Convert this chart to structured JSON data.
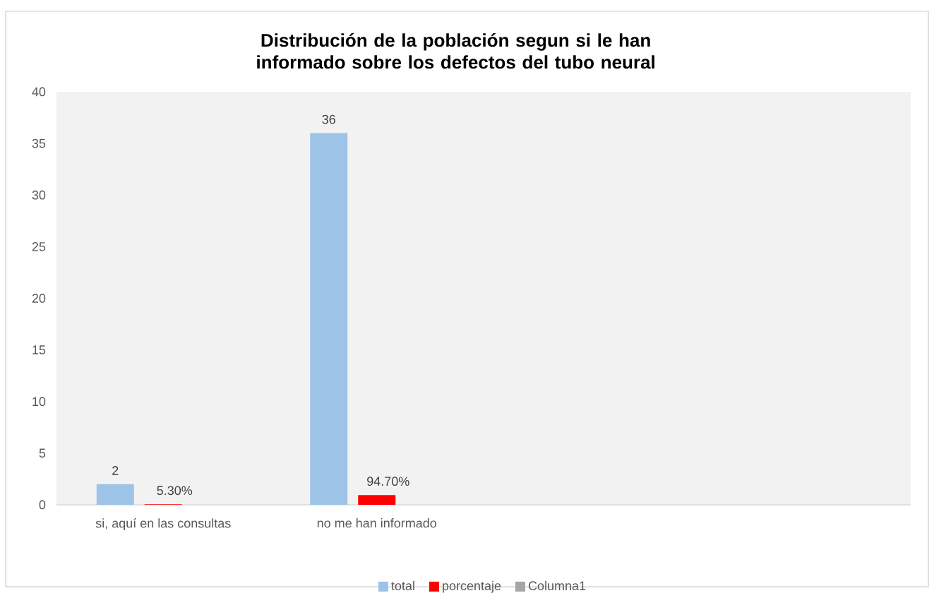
{
  "chart_data": {
    "type": "bar",
    "title": "Distribución de la población segun si le han informado sobre los defectos del tubo neural",
    "categories": [
      "si,  aquí en las consultas",
      "no me han informado",
      null,
      null
    ],
    "series": [
      {
        "name": "total",
        "color": "#9dc3e6",
        "values": [
          2,
          36,
          null,
          null
        ],
        "value_labels": [
          "2",
          "36",
          null,
          null
        ]
      },
      {
        "name": "porcentaje",
        "color": "#ff0000",
        "values": [
          0.053,
          0.947,
          null,
          null
        ],
        "value_labels": [
          "5.30%",
          "94.70%",
          null,
          null
        ]
      },
      {
        "name": "Columna1",
        "color": "#a5a5a5",
        "values": [
          null,
          null,
          null,
          null
        ]
      }
    ],
    "ylim": [
      0,
      40
    ],
    "yticks": [
      0,
      5,
      10,
      15,
      20,
      25,
      30,
      35,
      40
    ],
    "legend": "bottom"
  }
}
